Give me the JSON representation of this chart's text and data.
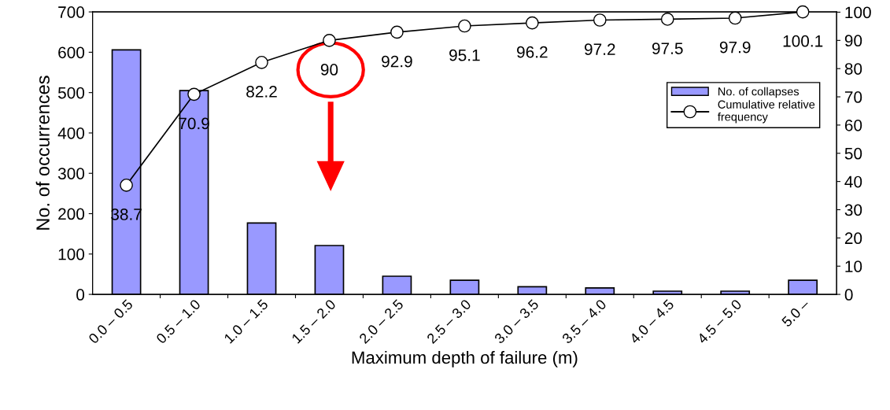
{
  "chart_data": {
    "type": "bar",
    "categories": [
      "0.0 – 0.5",
      "0.5 – 1.0",
      "1.0 – 1.5",
      "1.5 – 2.0",
      "2.0 – 2.5",
      "2.5 – 3.0",
      "3.0 – 3.5",
      "3.5 – 4.0",
      "4.0 – 4.5",
      "4.5 – 5.0",
      "5.0 –"
    ],
    "series": [
      {
        "name": "No. of collapses",
        "color": "#9999ff",
        "values": [
          606,
          505,
          177,
          121,
          45,
          35,
          19,
          16,
          8,
          8,
          35
        ]
      },
      {
        "name": "Cumulative relative\nfrequency",
        "type": "line",
        "axis": "y2",
        "color": "#000000",
        "values": [
          38.7,
          70.9,
          82.2,
          90,
          92.9,
          95.1,
          96.2,
          97.2,
          97.5,
          97.9,
          100.1
        ],
        "value_labels": [
          "38.7",
          "70.9",
          "82.2",
          "90",
          "92.9",
          "95.1",
          "96.2",
          "97.2",
          "97.5",
          "97.9",
          "100.1"
        ]
      }
    ],
    "xlabel": "Maximum depth of failure (m)",
    "ylabel": "No. of occurrences",
    "ylim": [
      0,
      700
    ],
    "yticks": [
      0,
      100,
      200,
      300,
      400,
      500,
      600,
      700
    ],
    "y2lim": [
      0,
      100.1
    ],
    "y2ticks": [
      0,
      10,
      20,
      30,
      40,
      50,
      60,
      70,
      80,
      90,
      100
    ],
    "marker": "circle",
    "line_style": "solid",
    "grid": false,
    "legend": "right"
  }
}
